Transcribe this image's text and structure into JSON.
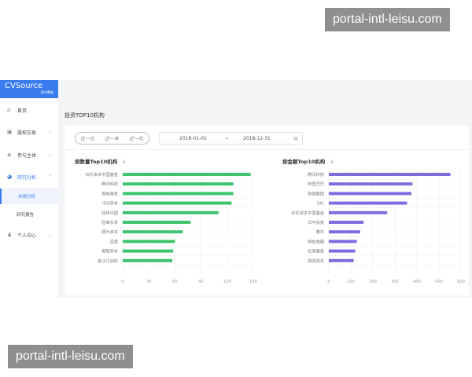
{
  "watermark": "portal-intl-leisu.com",
  "logo": {
    "text": "CVSource",
    "sub": "投中数据"
  },
  "sidebar": {
    "items": [
      {
        "label": "首页",
        "icon": "home-icon",
        "glyph": "⌂"
      },
      {
        "label": "股权交易",
        "icon": "lock-icon",
        "glyph": "▣",
        "chevron": "⌄"
      },
      {
        "label": "参与主体",
        "icon": "cube-icon",
        "glyph": "◈",
        "chevron": "⌄"
      },
      {
        "label": "研究分析",
        "icon": "pie-chart-icon",
        "glyph": "◕",
        "chevron": "⌃"
      },
      {
        "label": "市场分析"
      },
      {
        "label": "研究报告"
      },
      {
        "label": "个人中心",
        "icon": "user-icon",
        "glyph": "♟",
        "chevron": "⌄"
      }
    ]
  },
  "page_title": "投资TOP10机构",
  "filters": {
    "periods": [
      "近一月",
      "近一季",
      "近一年"
    ],
    "start_date": "2018-01-01",
    "separator": "~",
    "end_date": "2018-12-31",
    "calendar_icon": "calendar-icon"
  },
  "chart_data": [
    {
      "type": "bar",
      "title": "按数量Top10机构",
      "orientation": "horizontal",
      "color": "#3ec46d",
      "categories": [
        "红杉资本中国基金",
        "腾讯科技",
        "真格基金",
        "IDG资本",
        "经纬中国",
        "险峰长青",
        "顺为资本",
        "百度",
        "君联资本",
        "金沙江创投"
      ],
      "values": [
        147,
        127,
        127,
        125,
        110,
        78,
        69,
        60,
        58,
        57
      ],
      "xlim": [
        0,
        150
      ],
      "xticks": [
        0,
        30,
        60,
        90,
        120,
        150
      ],
      "grid": true
    },
    {
      "type": "bar",
      "title": "按金额Top10机构",
      "orientation": "horizontal",
      "color": "#7b6ee0",
      "categories": [
        "腾讯科技",
        "阿里巴巴",
        "软银集团",
        "GIC",
        "红杉资本中国基金",
        "华平投资",
        "春华",
        "蚂蚁金服",
        "社保基金",
        "高瓴资本"
      ],
      "values": [
        552,
        380,
        375,
        355,
        265,
        158,
        142,
        127,
        120,
        113
      ],
      "xlim": [
        0,
        600
      ],
      "xticks": [
        0,
        100,
        200,
        300,
        400,
        500,
        600
      ],
      "grid": true
    }
  ],
  "download_icon": "↓"
}
